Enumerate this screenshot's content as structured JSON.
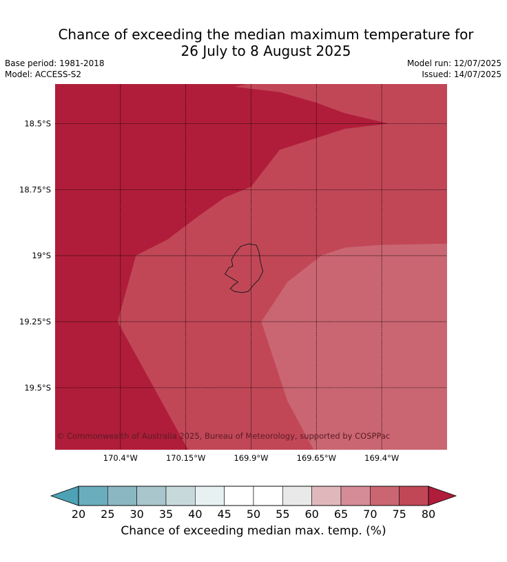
{
  "title": {
    "line1": "Chance of exceeding the median maximum temperature for",
    "line2": "26 July to 8 August 2025"
  },
  "meta": {
    "base_period": "Base period: 1981-2018",
    "model": "Model: ACCESS-S2",
    "model_run": "Model run: 12/07/2025",
    "issued": "Issued: 14/07/2025"
  },
  "copyright": "© Commonwealth of Australia 2025, Bureau of Meteorology, supported by COSPPac",
  "lat_labels": [
    {
      "value": -18.5,
      "label": "18.5°S"
    },
    {
      "value": -18.75,
      "label": "18.75°S"
    },
    {
      "value": -19.0,
      "label": "19°S"
    },
    {
      "value": -19.25,
      "label": "19.25°S"
    },
    {
      "value": -19.5,
      "label": "19.5°S"
    }
  ],
  "lon_labels": [
    {
      "value": -170.4,
      "label": "170.4°W"
    },
    {
      "value": -170.15,
      "label": "170.15°W"
    },
    {
      "value": -169.9,
      "label": "169.9°W"
    },
    {
      "value": -169.65,
      "label": "169.65°W"
    },
    {
      "value": -169.4,
      "label": "169.4°W"
    }
  ],
  "extent": {
    "lon": [
      -170.65,
      -169.15
    ],
    "lat": [
      -19.735,
      -18.35
    ]
  },
  "zones": [
    {
      "name": "zone-80-plus",
      "color": "#b01d3a",
      "polygon": [
        [
          -170.65,
          -18.35
        ],
        [
          -169.91,
          -18.35
        ],
        [
          -169.96,
          -18.36
        ],
        [
          -169.79,
          -18.38
        ],
        [
          -169.65,
          -18.42
        ],
        [
          -169.54,
          -18.46
        ],
        [
          -169.37,
          -18.5
        ],
        [
          -169.54,
          -18.52
        ],
        [
          -169.79,
          -18.6
        ],
        [
          -169.9,
          -18.74
        ],
        [
          -170.0,
          -18.78
        ],
        [
          -170.1,
          -18.85
        ],
        [
          -170.22,
          -18.94
        ],
        [
          -170.34,
          -19.0
        ],
        [
          -170.41,
          -19.25
        ],
        [
          -170.14,
          -19.735
        ],
        [
          -170.65,
          -19.735
        ]
      ]
    },
    {
      "name": "zone-75-80",
      "color": "#c14757",
      "polygon": [
        [
          -169.91,
          -18.35
        ],
        [
          -169.15,
          -18.35
        ],
        [
          -169.15,
          -19.735
        ],
        [
          -170.14,
          -19.735
        ],
        [
          -170.41,
          -19.25
        ],
        [
          -170.34,
          -19.0
        ],
        [
          -170.22,
          -18.94
        ],
        [
          -170.1,
          -18.85
        ],
        [
          -170.0,
          -18.78
        ],
        [
          -169.9,
          -18.74
        ],
        [
          -169.79,
          -18.6
        ],
        [
          -169.54,
          -18.52
        ],
        [
          -169.37,
          -18.5
        ],
        [
          -169.54,
          -18.46
        ],
        [
          -169.65,
          -18.42
        ],
        [
          -169.79,
          -18.38
        ],
        [
          -169.96,
          -18.36
        ]
      ]
    },
    {
      "name": "zone-70-75",
      "color": "#ca6672",
      "polygon": [
        [
          -169.15,
          -18.955
        ],
        [
          -169.15,
          -19.735
        ],
        [
          -169.66,
          -19.735
        ],
        [
          -169.76,
          -19.55
        ],
        [
          -169.86,
          -19.25
        ],
        [
          -169.76,
          -19.1
        ],
        [
          -169.63,
          -19.0
        ],
        [
          -169.54,
          -18.97
        ],
        [
          -169.4,
          -18.96
        ]
      ]
    }
  ],
  "island_outline": [
    [
      -169.94,
      -18.965
    ],
    [
      -169.91,
      -18.955
    ],
    [
      -169.88,
      -18.96
    ],
    [
      -169.87,
      -18.985
    ],
    [
      -169.865,
      -19.02
    ],
    [
      -169.855,
      -19.06
    ],
    [
      -169.87,
      -19.09
    ],
    [
      -169.89,
      -19.11
    ],
    [
      -169.91,
      -19.135
    ],
    [
      -169.935,
      -19.14
    ],
    [
      -169.965,
      -19.135
    ],
    [
      -169.98,
      -19.125
    ],
    [
      -169.965,
      -19.11
    ],
    [
      -169.95,
      -19.1
    ],
    [
      -169.975,
      -19.085
    ],
    [
      -170.0,
      -19.07
    ],
    [
      -169.985,
      -19.045
    ],
    [
      -169.97,
      -19.04
    ],
    [
      -169.975,
      -19.015
    ],
    [
      -169.96,
      -18.99
    ]
  ],
  "colorbar": {
    "title": "Chance of exceeding median max. temp. (%)",
    "ticks": [
      "20",
      "25",
      "30",
      "35",
      "40",
      "45",
      "50",
      "55",
      "60",
      "65",
      "70",
      "75",
      "80"
    ],
    "under_color": "#4da2b5",
    "over_color": "#b01d3a",
    "colors": [
      "#6aaebe",
      "#8bb7c2",
      "#a8c6cb",
      "#c8d9dc",
      "#e8f1f2",
      "#ffffff",
      "#ffffff",
      "#e9e9e9",
      "#e0b8bc",
      "#d58c96",
      "#ca6672",
      "#c14757"
    ]
  }
}
